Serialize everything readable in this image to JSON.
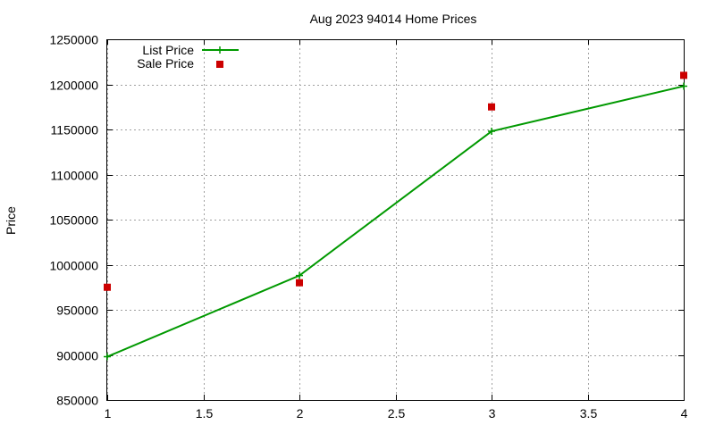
{
  "chart_data": {
    "type": "line",
    "title": "Aug 2023 94014 Home Prices",
    "xlabel": "",
    "ylabel": "Price",
    "xlim": [
      1,
      4
    ],
    "ylim": [
      850000,
      1250000
    ],
    "x_ticks": [
      "1",
      "1.5",
      "2",
      "2.5",
      "3",
      "3.5",
      "4"
    ],
    "y_ticks": [
      "850000",
      "900000",
      "950000",
      "1000000",
      "1050000",
      "1100000",
      "1150000",
      "1200000",
      "1250000"
    ],
    "grid": true,
    "legend_position": "top-left",
    "series": [
      {
        "name": "List Price",
        "style": "linespoints",
        "marker": "plus",
        "color": "#009900",
        "x": [
          1,
          2,
          3,
          4
        ],
        "y": [
          898000,
          988000,
          1148000,
          1198000
        ]
      },
      {
        "name": "Sale Price",
        "style": "points",
        "marker": "square",
        "color": "#cc0000",
        "x": [
          1,
          2,
          3,
          4
        ],
        "y": [
          975000,
          980000,
          1175000,
          1210000
        ]
      }
    ]
  }
}
